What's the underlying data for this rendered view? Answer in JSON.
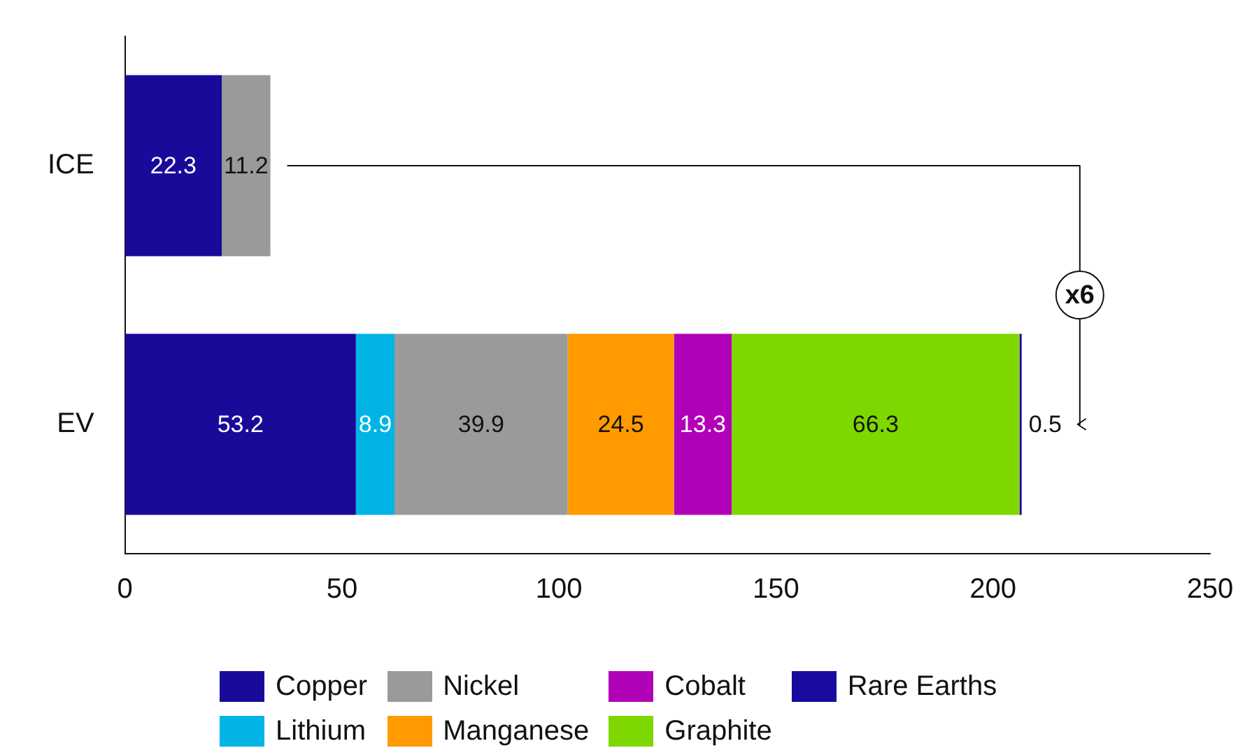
{
  "chart_data": {
    "type": "bar",
    "orientation": "horizontal",
    "stacked": true,
    "categories": [
      "ICE",
      "EV"
    ],
    "series": [
      {
        "name": "Copper",
        "color": "#1a0a9a",
        "values": [
          22.3,
          53.2
        ]
      },
      {
        "name": "Lithium",
        "color": "#00b4e6",
        "values": [
          null,
          8.9
        ]
      },
      {
        "name": "Nickel",
        "color": "#9a9a9a",
        "values": [
          11.2,
          39.9
        ]
      },
      {
        "name": "Manganese",
        "color": "#ff9a00",
        "values": [
          null,
          24.5
        ]
      },
      {
        "name": "Cobalt",
        "color": "#b000b8",
        "values": [
          null,
          13.3
        ]
      },
      {
        "name": "Graphite",
        "color": "#7ed800",
        "values": [
          null,
          66.3
        ]
      },
      {
        "name": "Rare Earths",
        "color": "#1a0aa0",
        "values": [
          null,
          0.5
        ]
      }
    ],
    "xlim": [
      0,
      250
    ],
    "xticks": [
      0,
      50,
      100,
      150,
      200,
      250
    ],
    "grid": false,
    "legend": "bottom",
    "data_labels": true,
    "annotations": [
      "x6"
    ]
  }
}
